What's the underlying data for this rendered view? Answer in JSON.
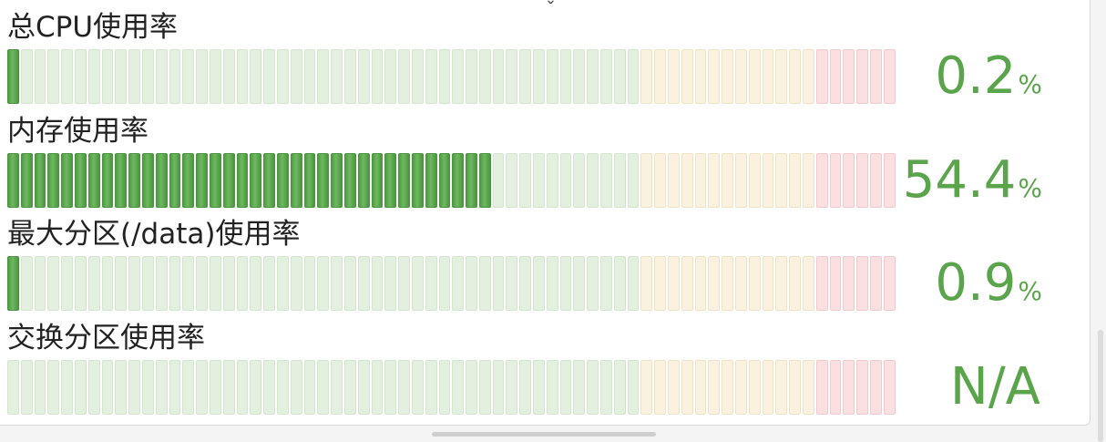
{
  "header": {
    "chevron_icon": "chevron-down-icon",
    "chevron_glyph": "ˇ"
  },
  "colors": {
    "accent": "#5aa54b",
    "segment_green": "#e4f0df",
    "segment_yellow": "#faf2df",
    "segment_red": "#fbdfe1",
    "segment_active": "#5aa54b"
  },
  "gauge_zones": {
    "total_segments": 66,
    "green_until": 47,
    "yellow_until": 60
  },
  "metrics": [
    {
      "label": "总CPU使用率",
      "value": "0.2",
      "unit": "%",
      "percent": 0.2,
      "active_segments": 1
    },
    {
      "label": "内存使用率",
      "value": "54.4",
      "unit": "%",
      "percent": 54.4,
      "active_segments": 36
    },
    {
      "label": "最大分区(/data)使用率",
      "value": "0.9",
      "unit": "%",
      "percent": 0.9,
      "active_segments": 1
    },
    {
      "label": "交换分区使用率",
      "value": "N/A",
      "unit": "",
      "percent": null,
      "active_segments": 0
    }
  ]
}
